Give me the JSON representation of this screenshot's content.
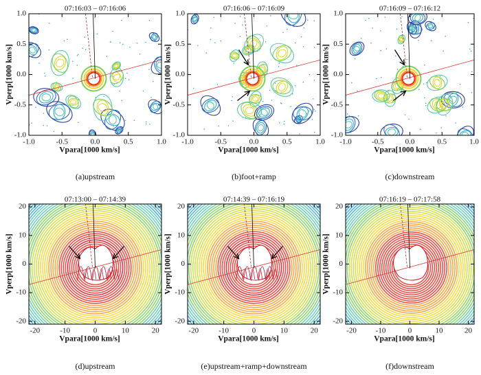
{
  "chart_data": [
    {
      "type": "contour",
      "title": "07:16:03 – 07:16:06",
      "xlabel": "Vpara[1000 km/s]",
      "ylabel": "Vperp[1000 km/s]",
      "caption": "(a)upstream",
      "xlim": [
        -1,
        1
      ],
      "ylim": [
        -1,
        1
      ],
      "xticks": [
        {
          "value": -1,
          "label": "-1.0"
        },
        {
          "value": -0.5,
          "label": "-0.5"
        },
        {
          "value": 0,
          "label": "0.0"
        },
        {
          "value": 0.5,
          "label": "0.5"
        },
        {
          "value": 1,
          "label": "1.0"
        }
      ],
      "yticks": [
        {
          "value": -1,
          "label": "-1.0"
        },
        {
          "value": -0.5,
          "label": "-0.5"
        },
        {
          "value": 0,
          "label": "0.0"
        },
        {
          "value": 0.5,
          "label": "0.5"
        },
        {
          "value": 1,
          "label": "1.0"
        }
      ]
    },
    {
      "type": "contour",
      "title": "07:16:06 – 07:16:09",
      "xlabel": "Vpara[1000 km/s]",
      "ylabel": "Vperp[1000 km/s]",
      "caption": "(b)foot+ramp",
      "xlim": [
        -1,
        1
      ],
      "ylim": [
        -1,
        1
      ],
      "xticks": [
        {
          "value": -1,
          "label": "-1.0"
        },
        {
          "value": -0.5,
          "label": "-0.5"
        },
        {
          "value": 0,
          "label": "0.0"
        },
        {
          "value": 0.5,
          "label": "0.5"
        },
        {
          "value": 1,
          "label": "1.0"
        }
      ],
      "yticks": [
        {
          "value": -1,
          "label": "-1.0"
        },
        {
          "value": -0.5,
          "label": "-0.5"
        },
        {
          "value": 0,
          "label": "0.0"
        },
        {
          "value": 0.5,
          "label": "0.5"
        },
        {
          "value": 1,
          "label": "1.0"
        }
      ]
    },
    {
      "type": "contour",
      "title": "07:16:09 – 07:16:12",
      "xlabel": "Vpara[1000 km/s]",
      "ylabel": "Vperp[1000 km/s]",
      "caption": "(c)downstream",
      "xlim": [
        -1,
        1
      ],
      "ylim": [
        -1,
        1
      ],
      "xticks": [
        {
          "value": -1,
          "label": "-1.0"
        },
        {
          "value": -0.5,
          "label": "-0.5"
        },
        {
          "value": 0,
          "label": "0.0"
        },
        {
          "value": 0.5,
          "label": "0.5"
        },
        {
          "value": 1,
          "label": "1.0"
        }
      ],
      "yticks": [
        {
          "value": -1,
          "label": "-1.0"
        },
        {
          "value": -0.5,
          "label": "-0.5"
        },
        {
          "value": 0,
          "label": "0.0"
        },
        {
          "value": 0.5,
          "label": "0.5"
        },
        {
          "value": 1,
          "label": "1.0"
        }
      ]
    },
    {
      "type": "rings",
      "title": "07:13:00 – 07:14:39",
      "xlabel": "Vpara[1000 km/s]",
      "ylabel": "Vperp[1000 km/s]",
      "caption": "(d)upstream",
      "xlim": [
        -22,
        22
      ],
      "ylim": [
        -21,
        21
      ],
      "xticks": [
        -20,
        -10,
        0,
        10,
        20
      ],
      "yticks": [
        -20,
        -10,
        0,
        10,
        20
      ]
    },
    {
      "type": "rings",
      "title": "07:14:39 – 07:16:19",
      "xlabel": "Vpara[1000 km/s]",
      "ylabel": "Vperp[1000 km/s]",
      "caption": "(e)upstream+ramp+downstream",
      "xlim": [
        -22,
        22
      ],
      "ylim": [
        -21,
        21
      ],
      "xticks": [
        -20,
        -10,
        0,
        10,
        20
      ],
      "yticks": [
        -20,
        -10,
        0,
        10,
        20
      ]
    },
    {
      "type": "rings",
      "title": "07:16:19 – 07:17:58",
      "xlabel": "Vpara[1000 km/s]",
      "ylabel": "Vperp[1000 km/s]",
      "caption": "(f)downstream",
      "xlim": [
        -22,
        22
      ],
      "ylim": [
        -21,
        21
      ],
      "xticks": [
        -20,
        -10,
        0,
        10,
        20
      ],
      "yticks": [
        -20,
        -10,
        0,
        10,
        20
      ]
    }
  ]
}
